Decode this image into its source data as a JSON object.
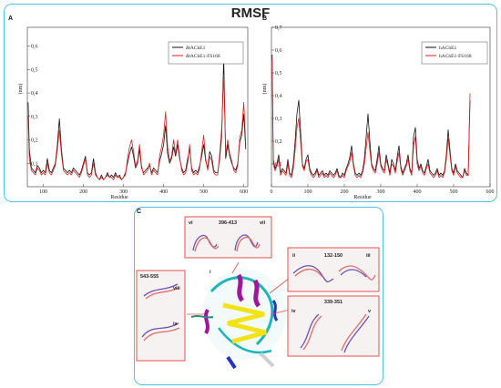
{
  "title": "RMSF",
  "panel_letters": {
    "a": "A",
    "b": "B",
    "c": "C"
  },
  "colors": {
    "frame": "#4fc3e6",
    "series_black": "#111111",
    "series_red": "#e41a1c",
    "box_border": "#e4524a"
  },
  "chart_data": [
    {
      "type": "line",
      "panel": "A",
      "xlabel": "Residue",
      "ylabel": "(nm)",
      "xlim": [
        60,
        610
      ],
      "ylim": [
        0,
        0.68
      ],
      "xticks": [
        100,
        200,
        300,
        400,
        500,
        600
      ],
      "yticks": [
        0.1,
        0.2,
        0.3,
        0.4,
        0.5,
        0.6
      ],
      "ytick_labels": [
        "0,1",
        "0,2",
        "0,3",
        "0,4",
        "0,5",
        "0,6"
      ],
      "legend_position": "top-right",
      "legend": {
        "black_prefix": "Bt",
        "black_suffix": "AChE1",
        "red_prefix": "Bt",
        "red_suffix": "AChE1-FS168"
      },
      "series": [
        {
          "name": "BtAChE1",
          "color": "#111111",
          "x": [
            62,
            65,
            70,
            75,
            80,
            85,
            90,
            95,
            100,
            105,
            110,
            115,
            120,
            125,
            130,
            135,
            140,
            145,
            150,
            155,
            160,
            165,
            170,
            175,
            180,
            185,
            190,
            195,
            200,
            205,
            210,
            215,
            220,
            225,
            230,
            235,
            240,
            245,
            250,
            255,
            260,
            265,
            270,
            275,
            280,
            285,
            290,
            295,
            300,
            305,
            310,
            315,
            320,
            325,
            330,
            335,
            340,
            345,
            350,
            355,
            360,
            365,
            370,
            375,
            380,
            385,
            390,
            395,
            400,
            405,
            410,
            415,
            420,
            425,
            430,
            435,
            440,
            445,
            450,
            455,
            460,
            465,
            470,
            475,
            480,
            485,
            490,
            495,
            500,
            505,
            510,
            515,
            520,
            525,
            530,
            535,
            540,
            545,
            550,
            555,
            560,
            565,
            570,
            575,
            580,
            585,
            590,
            595,
            600,
            605
          ],
          "y": [
            0.36,
            0.16,
            0.08,
            0.07,
            0.06,
            0.09,
            0.08,
            0.06,
            0.07,
            0.06,
            0.12,
            0.07,
            0.06,
            0.08,
            0.1,
            0.18,
            0.29,
            0.16,
            0.08,
            0.07,
            0.06,
            0.07,
            0.06,
            0.08,
            0.07,
            0.06,
            0.05,
            0.07,
            0.1,
            0.13,
            0.06,
            0.05,
            0.06,
            0.12,
            0.06,
            0.04,
            0.03,
            0.05,
            0.03,
            0.04,
            0.06,
            0.04,
            0.05,
            0.04,
            0.06,
            0.04,
            0.05,
            0.03,
            0.04,
            0.06,
            0.1,
            0.14,
            0.17,
            0.13,
            0.08,
            0.1,
            0.16,
            0.08,
            0.06,
            0.07,
            0.08,
            0.09,
            0.06,
            0.08,
            0.07,
            0.06,
            0.11,
            0.14,
            0.18,
            0.26,
            0.14,
            0.1,
            0.12,
            0.17,
            0.13,
            0.18,
            0.12,
            0.08,
            0.06,
            0.07,
            0.12,
            0.16,
            0.08,
            0.06,
            0.07,
            0.06,
            0.09,
            0.13,
            0.18,
            0.11,
            0.08,
            0.15,
            0.13,
            0.07,
            0.06,
            0.06,
            0.12,
            0.22,
            0.55,
            0.12,
            0.18,
            0.13,
            0.1,
            0.08,
            0.07,
            0.1,
            0.19,
            0.22,
            0.31,
            0.16
          ]
        },
        {
          "name": "BtAChE1-FS168",
          "color": "#e41a1c",
          "x": [
            62,
            65,
            70,
            75,
            80,
            85,
            90,
            95,
            100,
            105,
            110,
            115,
            120,
            125,
            130,
            135,
            140,
            145,
            150,
            155,
            160,
            165,
            170,
            175,
            180,
            185,
            190,
            195,
            200,
            205,
            210,
            215,
            220,
            225,
            230,
            235,
            240,
            245,
            250,
            255,
            260,
            265,
            270,
            275,
            280,
            285,
            290,
            295,
            300,
            305,
            310,
            315,
            320,
            325,
            330,
            335,
            340,
            345,
            350,
            355,
            360,
            365,
            370,
            375,
            380,
            385,
            390,
            395,
            400,
            405,
            410,
            415,
            420,
            425,
            430,
            435,
            440,
            445,
            450,
            455,
            460,
            465,
            470,
            475,
            480,
            485,
            490,
            495,
            500,
            505,
            510,
            515,
            520,
            525,
            530,
            535,
            540,
            545,
            550,
            555,
            560,
            565,
            570,
            575,
            580,
            585,
            590,
            595,
            600,
            605
          ],
          "y": [
            0.3,
            0.12,
            0.07,
            0.06,
            0.05,
            0.08,
            0.07,
            0.05,
            0.06,
            0.05,
            0.1,
            0.06,
            0.05,
            0.07,
            0.09,
            0.16,
            0.24,
            0.14,
            0.07,
            0.06,
            0.05,
            0.06,
            0.05,
            0.07,
            0.06,
            0.05,
            0.04,
            0.06,
            0.09,
            0.12,
            0.05,
            0.04,
            0.05,
            0.1,
            0.05,
            0.04,
            0.03,
            0.04,
            0.03,
            0.04,
            0.05,
            0.04,
            0.04,
            0.03,
            0.05,
            0.04,
            0.04,
            0.03,
            0.04,
            0.05,
            0.12,
            0.17,
            0.2,
            0.15,
            0.09,
            0.11,
            0.18,
            0.09,
            0.05,
            0.06,
            0.07,
            0.1,
            0.05,
            0.07,
            0.06,
            0.05,
            0.13,
            0.17,
            0.22,
            0.32,
            0.17,
            0.11,
            0.13,
            0.2,
            0.14,
            0.2,
            0.13,
            0.07,
            0.05,
            0.06,
            0.1,
            0.18,
            0.07,
            0.05,
            0.06,
            0.05,
            0.08,
            0.15,
            0.22,
            0.12,
            0.07,
            0.13,
            0.11,
            0.06,
            0.05,
            0.05,
            0.14,
            0.25,
            0.48,
            0.14,
            0.2,
            0.14,
            0.11,
            0.07,
            0.06,
            0.09,
            0.21,
            0.24,
            0.36,
            0.18
          ]
        }
      ]
    },
    {
      "type": "line",
      "panel": "B",
      "xlabel": "Residue",
      "ylabel": "(nm)",
      "xlim": [
        0,
        600
      ],
      "ylim": [
        0,
        0.7
      ],
      "xticks": [
        0,
        100,
        200,
        300,
        400,
        500,
        600
      ],
      "yticks": [
        0.1,
        0.2,
        0.3,
        0.4,
        0.5,
        0.6,
        0.7
      ],
      "ytick_labels": [
        "0,1",
        "0,2",
        "0,3",
        "0,4",
        "0,5",
        "0,6",
        "0,7"
      ],
      "legend_position": "top-right",
      "legend": {
        "black": "hAChE1",
        "red": "hAChE1-FS168"
      },
      "series": [
        {
          "name": "hAChE1",
          "color": "#111111",
          "x": [
            2,
            5,
            10,
            15,
            20,
            25,
            30,
            35,
            40,
            45,
            50,
            55,
            60,
            65,
            70,
            75,
            80,
            85,
            90,
            95,
            100,
            105,
            110,
            115,
            120,
            125,
            130,
            135,
            140,
            145,
            150,
            155,
            160,
            165,
            170,
            175,
            180,
            185,
            190,
            195,
            200,
            205,
            210,
            215,
            220,
            225,
            230,
            235,
            240,
            245,
            250,
            255,
            260,
            265,
            270,
            275,
            280,
            285,
            290,
            295,
            300,
            305,
            310,
            315,
            320,
            325,
            330,
            335,
            340,
            345,
            350,
            355,
            360,
            365,
            370,
            375,
            380,
            385,
            390,
            395,
            400,
            405,
            410,
            415,
            420,
            425,
            430,
            435,
            440,
            445,
            450,
            455,
            460,
            465,
            470,
            475,
            480,
            485,
            490,
            495,
            500,
            505,
            510,
            515,
            520,
            525,
            530,
            535,
            540,
            545
          ],
          "y": [
            0.58,
            0.12,
            0.08,
            0.1,
            0.14,
            0.06,
            0.08,
            0.07,
            0.06,
            0.12,
            0.06,
            0.05,
            0.1,
            0.2,
            0.32,
            0.38,
            0.24,
            0.1,
            0.08,
            0.12,
            0.14,
            0.08,
            0.06,
            0.05,
            0.06,
            0.08,
            0.05,
            0.06,
            0.07,
            0.05,
            0.06,
            0.05,
            0.07,
            0.06,
            0.05,
            0.06,
            0.08,
            0.05,
            0.04,
            0.06,
            0.05,
            0.08,
            0.1,
            0.13,
            0.18,
            0.1,
            0.06,
            0.05,
            0.06,
            0.05,
            0.07,
            0.12,
            0.22,
            0.32,
            0.2,
            0.1,
            0.08,
            0.07,
            0.12,
            0.18,
            0.1,
            0.08,
            0.07,
            0.14,
            0.1,
            0.06,
            0.12,
            0.1,
            0.07,
            0.13,
            0.18,
            0.09,
            0.06,
            0.08,
            0.1,
            0.14,
            0.08,
            0.06,
            0.22,
            0.26,
            0.12,
            0.08,
            0.1,
            0.07,
            0.06,
            0.09,
            0.12,
            0.07,
            0.06,
            0.05,
            0.06,
            0.08,
            0.05,
            0.06,
            0.05,
            0.07,
            0.14,
            0.25,
            0.16,
            0.08,
            0.06,
            0.1,
            0.07,
            0.06,
            0.05,
            0.04,
            0.08,
            0.06,
            0.05,
            0.38
          ]
        },
        {
          "name": "hAChE1-FS168",
          "color": "#e41a1c",
          "x": [
            2,
            5,
            10,
            15,
            20,
            25,
            30,
            35,
            40,
            45,
            50,
            55,
            60,
            65,
            70,
            75,
            80,
            85,
            90,
            95,
            100,
            105,
            110,
            115,
            120,
            125,
            130,
            135,
            140,
            145,
            150,
            155,
            160,
            165,
            170,
            175,
            180,
            185,
            190,
            195,
            200,
            205,
            210,
            215,
            220,
            225,
            230,
            235,
            240,
            245,
            250,
            255,
            260,
            265,
            270,
            275,
            280,
            285,
            290,
            295,
            300,
            305,
            310,
            315,
            320,
            325,
            330,
            335,
            340,
            345,
            350,
            355,
            360,
            365,
            370,
            375,
            380,
            385,
            390,
            395,
            400,
            405,
            410,
            415,
            420,
            425,
            430,
            435,
            440,
            445,
            450,
            455,
            460,
            465,
            470,
            475,
            480,
            485,
            490,
            495,
            500,
            505,
            510,
            515,
            520,
            525,
            530,
            535,
            540,
            545
          ],
          "y": [
            0.56,
            0.1,
            0.07,
            0.09,
            0.12,
            0.05,
            0.07,
            0.06,
            0.05,
            0.1,
            0.05,
            0.04,
            0.08,
            0.16,
            0.26,
            0.3,
            0.2,
            0.09,
            0.07,
            0.11,
            0.12,
            0.07,
            0.05,
            0.04,
            0.05,
            0.07,
            0.04,
            0.05,
            0.06,
            0.04,
            0.05,
            0.04,
            0.06,
            0.05,
            0.04,
            0.05,
            0.07,
            0.04,
            0.04,
            0.05,
            0.04,
            0.07,
            0.09,
            0.11,
            0.15,
            0.09,
            0.05,
            0.04,
            0.05,
            0.04,
            0.06,
            0.1,
            0.17,
            0.24,
            0.16,
            0.09,
            0.07,
            0.06,
            0.1,
            0.15,
            0.09,
            0.07,
            0.06,
            0.12,
            0.09,
            0.05,
            0.1,
            0.09,
            0.06,
            0.11,
            0.15,
            0.08,
            0.05,
            0.07,
            0.09,
            0.12,
            0.07,
            0.05,
            0.18,
            0.22,
            0.1,
            0.07,
            0.09,
            0.06,
            0.05,
            0.08,
            0.1,
            0.06,
            0.05,
            0.04,
            0.05,
            0.07,
            0.04,
            0.05,
            0.04,
            0.06,
            0.12,
            0.21,
            0.14,
            0.07,
            0.05,
            0.09,
            0.06,
            0.05,
            0.04,
            0.04,
            0.07,
            0.05,
            0.05,
            0.41
          ]
        }
      ]
    }
  ],
  "structure_panel": {
    "center_label": "i",
    "regions": [
      {
        "id": "top",
        "range": "396-413",
        "left": "vi",
        "right": "vii"
      },
      {
        "id": "right-top",
        "range": "132-150",
        "left": "ii",
        "right": "iii"
      },
      {
        "id": "right-bottom",
        "range": "339-351",
        "left": "iv",
        "right": "v"
      },
      {
        "id": "left",
        "range": "543-555",
        "top": "viii",
        "bottom": "ix"
      }
    ]
  }
}
